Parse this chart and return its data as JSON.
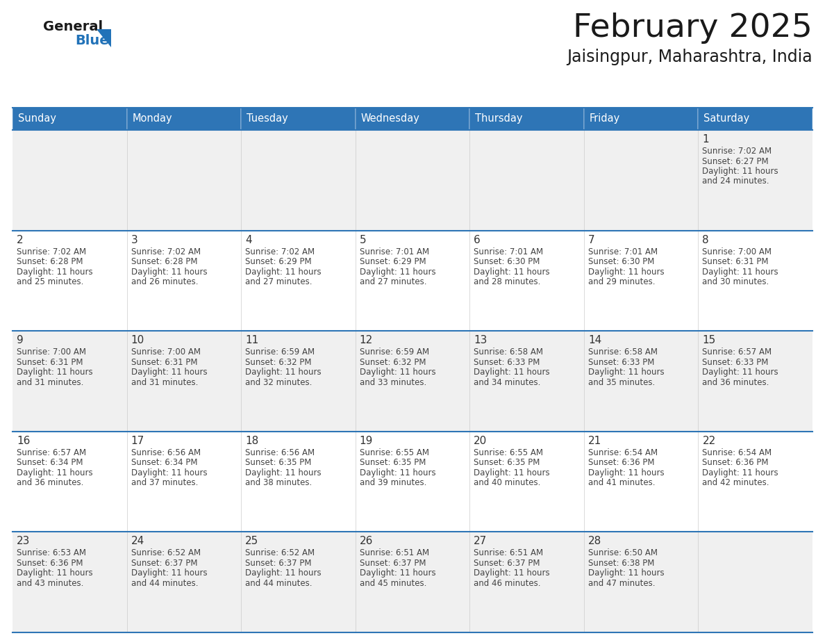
{
  "title": "February 2025",
  "subtitle": "Jaisingpur, Maharashtra, India",
  "header_color": "#2E75B6",
  "header_text_color": "#FFFFFF",
  "days_of_week": [
    "Sunday",
    "Monday",
    "Tuesday",
    "Wednesday",
    "Thursday",
    "Friday",
    "Saturday"
  ],
  "background_color": "#FFFFFF",
  "cell_bg_white": "#FFFFFF",
  "cell_bg_gray": "#F0F0F0",
  "border_color": "#2E75B6",
  "cell_border_color": "#AAAAAA",
  "day_num_color": "#333333",
  "info_text_color": "#444444",
  "logo_general_color": "#1A1A1A",
  "logo_blue_color": "#2172B8",
  "calendar_data": [
    [
      {
        "day": null,
        "sunrise": null,
        "sunset": null,
        "daylight": null
      },
      {
        "day": null,
        "sunrise": null,
        "sunset": null,
        "daylight": null
      },
      {
        "day": null,
        "sunrise": null,
        "sunset": null,
        "daylight": null
      },
      {
        "day": null,
        "sunrise": null,
        "sunset": null,
        "daylight": null
      },
      {
        "day": null,
        "sunrise": null,
        "sunset": null,
        "daylight": null
      },
      {
        "day": null,
        "sunrise": null,
        "sunset": null,
        "daylight": null
      },
      {
        "day": 1,
        "sunrise": "7:02 AM",
        "sunset": "6:27 PM",
        "daylight": "11 hours and 24 minutes."
      }
    ],
    [
      {
        "day": 2,
        "sunrise": "7:02 AM",
        "sunset": "6:28 PM",
        "daylight": "11 hours and 25 minutes."
      },
      {
        "day": 3,
        "sunrise": "7:02 AM",
        "sunset": "6:28 PM",
        "daylight": "11 hours and 26 minutes."
      },
      {
        "day": 4,
        "sunrise": "7:02 AM",
        "sunset": "6:29 PM",
        "daylight": "11 hours and 27 minutes."
      },
      {
        "day": 5,
        "sunrise": "7:01 AM",
        "sunset": "6:29 PM",
        "daylight": "11 hours and 27 minutes."
      },
      {
        "day": 6,
        "sunrise": "7:01 AM",
        "sunset": "6:30 PM",
        "daylight": "11 hours and 28 minutes."
      },
      {
        "day": 7,
        "sunrise": "7:01 AM",
        "sunset": "6:30 PM",
        "daylight": "11 hours and 29 minutes."
      },
      {
        "day": 8,
        "sunrise": "7:00 AM",
        "sunset": "6:31 PM",
        "daylight": "11 hours and 30 minutes."
      }
    ],
    [
      {
        "day": 9,
        "sunrise": "7:00 AM",
        "sunset": "6:31 PM",
        "daylight": "11 hours and 31 minutes."
      },
      {
        "day": 10,
        "sunrise": "7:00 AM",
        "sunset": "6:31 PM",
        "daylight": "11 hours and 31 minutes."
      },
      {
        "day": 11,
        "sunrise": "6:59 AM",
        "sunset": "6:32 PM",
        "daylight": "11 hours and 32 minutes."
      },
      {
        "day": 12,
        "sunrise": "6:59 AM",
        "sunset": "6:32 PM",
        "daylight": "11 hours and 33 minutes."
      },
      {
        "day": 13,
        "sunrise": "6:58 AM",
        "sunset": "6:33 PM",
        "daylight": "11 hours and 34 minutes."
      },
      {
        "day": 14,
        "sunrise": "6:58 AM",
        "sunset": "6:33 PM",
        "daylight": "11 hours and 35 minutes."
      },
      {
        "day": 15,
        "sunrise": "6:57 AM",
        "sunset": "6:33 PM",
        "daylight": "11 hours and 36 minutes."
      }
    ],
    [
      {
        "day": 16,
        "sunrise": "6:57 AM",
        "sunset": "6:34 PM",
        "daylight": "11 hours and 36 minutes."
      },
      {
        "day": 17,
        "sunrise": "6:56 AM",
        "sunset": "6:34 PM",
        "daylight": "11 hours and 37 minutes."
      },
      {
        "day": 18,
        "sunrise": "6:56 AM",
        "sunset": "6:35 PM",
        "daylight": "11 hours and 38 minutes."
      },
      {
        "day": 19,
        "sunrise": "6:55 AM",
        "sunset": "6:35 PM",
        "daylight": "11 hours and 39 minutes."
      },
      {
        "day": 20,
        "sunrise": "6:55 AM",
        "sunset": "6:35 PM",
        "daylight": "11 hours and 40 minutes."
      },
      {
        "day": 21,
        "sunrise": "6:54 AM",
        "sunset": "6:36 PM",
        "daylight": "11 hours and 41 minutes."
      },
      {
        "day": 22,
        "sunrise": "6:54 AM",
        "sunset": "6:36 PM",
        "daylight": "11 hours and 42 minutes."
      }
    ],
    [
      {
        "day": 23,
        "sunrise": "6:53 AM",
        "sunset": "6:36 PM",
        "daylight": "11 hours and 43 minutes."
      },
      {
        "day": 24,
        "sunrise": "6:52 AM",
        "sunset": "6:37 PM",
        "daylight": "11 hours and 44 minutes."
      },
      {
        "day": 25,
        "sunrise": "6:52 AM",
        "sunset": "6:37 PM",
        "daylight": "11 hours and 44 minutes."
      },
      {
        "day": 26,
        "sunrise": "6:51 AM",
        "sunset": "6:37 PM",
        "daylight": "11 hours and 45 minutes."
      },
      {
        "day": 27,
        "sunrise": "6:51 AM",
        "sunset": "6:37 PM",
        "daylight": "11 hours and 46 minutes."
      },
      {
        "day": 28,
        "sunrise": "6:50 AM",
        "sunset": "6:38 PM",
        "daylight": "11 hours and 47 minutes."
      },
      {
        "day": null,
        "sunrise": null,
        "sunset": null,
        "daylight": null
      }
    ]
  ]
}
